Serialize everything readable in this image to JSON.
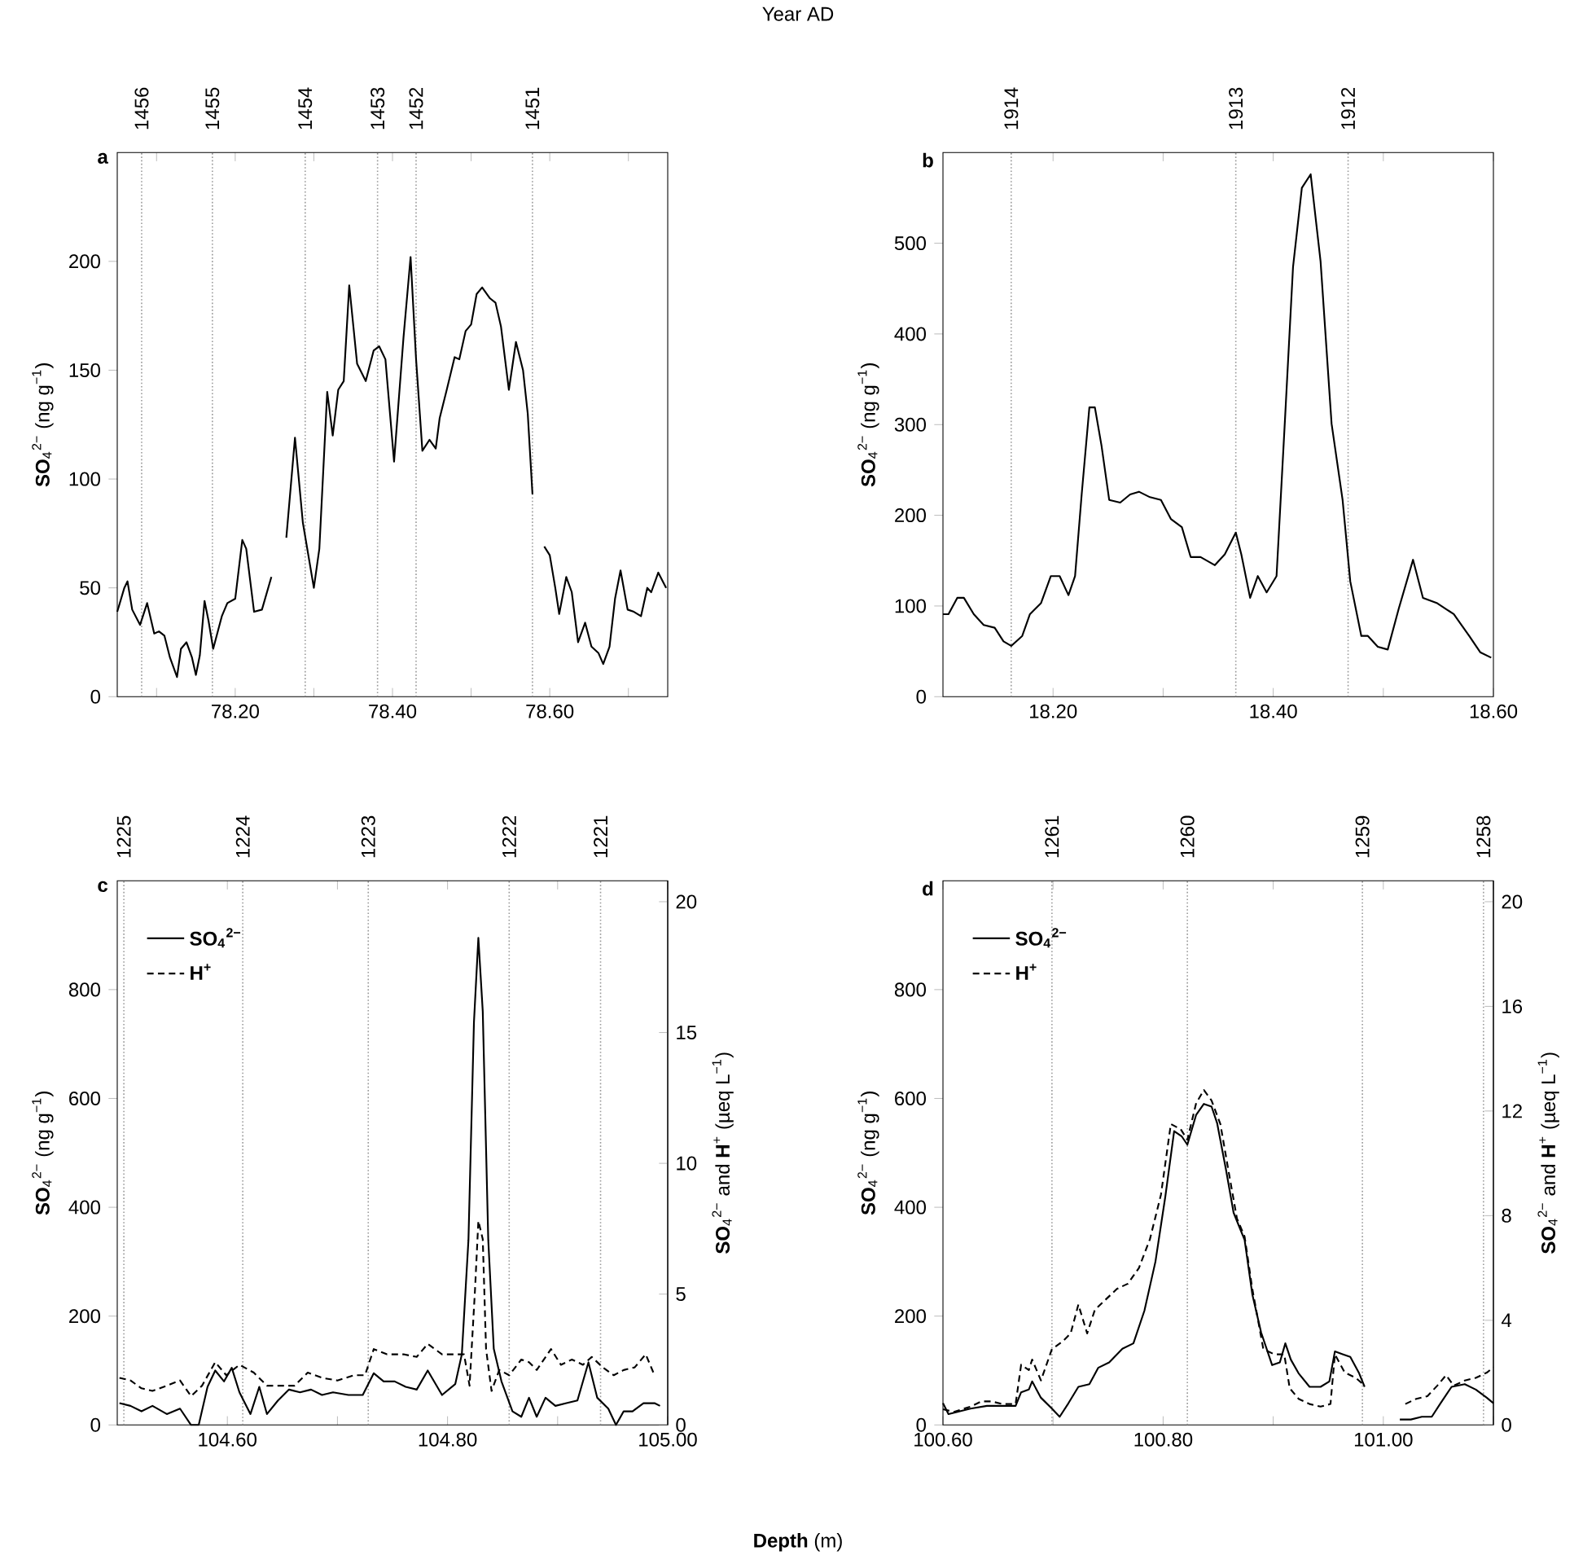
{
  "chart_data": [
    {
      "type": "line",
      "title": "a",
      "ylabel": "**SO**$_{4}$$^{2−}$ (ng g$^{−1}$)",
      "annotations": [
        "1456",
        "1455",
        "1454",
        "1453",
        "1452",
        "1451",
        "Year AD"
      ],
      "xlim": [
        78.05,
        78.75
      ],
      "ylim": [
        0,
        250
      ],
      "xticks": [
        {
          "value": 78.1,
          "label": null
        },
        {
          "value": 78.2,
          "label": "78.20"
        },
        {
          "value": 78.3,
          "label": null
        },
        {
          "value": 78.4,
          "label": "78.40"
        },
        {
          "value": 78.5,
          "label": null
        },
        {
          "value": 78.6,
          "label": "78.60"
        },
        {
          "value": 78.7,
          "label": null
        }
      ],
      "yticks": [
        0,
        50,
        100,
        150,
        200
      ],
      "ref_lines": [
        {
          "axis": "x",
          "value": 78.081,
          "color": "#999999",
          "line_style": "dotted"
        },
        {
          "axis": "x",
          "value": 78.171,
          "color": "#999999",
          "line_style": "dotted"
        },
        {
          "axis": "x",
          "value": 78.289,
          "color": "#999999",
          "line_style": "dotted"
        },
        {
          "axis": "x",
          "value": 78.381,
          "color": "#999999",
          "line_style": "dotted"
        },
        {
          "axis": "x",
          "value": 78.43,
          "color": "#999999",
          "line_style": "dotted"
        },
        {
          "axis": "x",
          "value": 78.578,
          "color": "#999999",
          "line_style": "dotted"
        }
      ],
      "series": [
        {
          "color": "#000000",
          "line_style": "solid",
          "x": [
            78.05,
            78.059,
            78.063,
            78.069,
            78.079,
            78.088,
            78.097,
            78.103,
            78.11,
            78.117,
            78.126,
            78.131,
            78.138,
            78.145,
            78.15,
            78.155,
            78.161,
            78.166,
            78.172,
            78.183,
            78.19,
            78.2,
            78.209,
            78.214,
            78.224,
            78.234,
            78.246,
            78.255,
            78.265,
            78.276,
            78.286,
            78.3,
            78.307,
            78.317,
            78.324,
            78.331,
            78.338,
            78.345,
            78.355,
            78.366,
            78.376,
            78.383,
            78.391,
            78.402,
            78.414,
            78.423,
            78.43,
            78.438,
            78.447,
            78.455,
            78.46,
            78.469,
            78.479,
            78.485,
            78.493,
            78.5,
            78.507,
            78.514,
            78.524,
            78.531,
            78.538,
            78.548,
            78.557,
            78.566,
            78.572,
            78.578,
            78.585,
            78.593,
            78.6,
            78.607,
            78.612,
            78.621,
            78.628,
            78.636,
            78.645,
            78.653,
            78.662,
            78.668,
            78.676,
            78.683,
            78.69,
            78.699,
            78.707,
            78.716,
            78.724,
            78.729,
            78.738,
            78.748
          ],
          "values": [
            39,
            50,
            53,
            40,
            33,
            43,
            29,
            30,
            28,
            18,
            9,
            22,
            25,
            18,
            10,
            19,
            44,
            35,
            22,
            37,
            43,
            45,
            72,
            68,
            39,
            40,
            55,
            null,
            73,
            119,
            80,
            50,
            68,
            140,
            120,
            141,
            145,
            189,
            153,
            145,
            159,
            161,
            155,
            108,
            165,
            202,
            155,
            113,
            118,
            114,
            128,
            141,
            156,
            155,
            168,
            171,
            185,
            188,
            183,
            181,
            170,
            141,
            163,
            150,
            130,
            93,
            null,
            69,
            65,
            50,
            38,
            55,
            48,
            25,
            34,
            23,
            20,
            15,
            23,
            45,
            58,
            40,
            39,
            37,
            50,
            48,
            57,
            50
          ]
        }
      ]
    },
    {
      "type": "line",
      "title": "b",
      "ylabel": "**SO**$_{4}$$^{2−}$ (ng g$^{−1}$)",
      "xlim": [
        18.1,
        18.6
      ],
      "ylim": [
        0,
        600
      ],
      "xticks": [
        {
          "value": 18.2,
          "label": "18.20"
        },
        {
          "value": 18.3,
          "label": null
        },
        {
          "value": 18.4,
          "label": "18.40"
        },
        {
          "value": 18.5,
          "label": null
        },
        {
          "value": 18.6,
          "label": "18.60"
        }
      ],
      "yticks": [
        0,
        100,
        200,
        300,
        400,
        500
      ],
      "annotations": [
        "1914",
        "1913",
        "1912"
      ],
      "ref_lines": [
        {
          "axis": "x",
          "value": 18.162,
          "color": "#999999",
          "line_style": "dotted"
        },
        {
          "axis": "x",
          "value": 18.366,
          "color": "#999999",
          "line_style": "dotted"
        },
        {
          "axis": "x",
          "value": 18.468,
          "color": "#999999",
          "line_style": "dotted"
        }
      ],
      "series": [
        {
          "color": "#000000",
          "line_style": "solid",
          "x": [
            18.1,
            18.105,
            18.113,
            18.119,
            18.128,
            18.137,
            18.147,
            18.155,
            18.162,
            18.172,
            18.179,
            18.189,
            18.198,
            18.206,
            18.214,
            18.22,
            18.226,
            18.233,
            18.238,
            18.244,
            18.251,
            18.261,
            18.27,
            18.278,
            18.288,
            18.298,
            18.307,
            18.317,
            18.325,
            18.334,
            18.347,
            18.356,
            18.366,
            18.371,
            18.379,
            18.386,
            18.394,
            18.403,
            18.411,
            18.418,
            18.426,
            18.434,
            18.443,
            18.453,
            18.463,
            18.47,
            18.48,
            18.486,
            18.495,
            18.504,
            18.514,
            18.527,
            18.536,
            18.549,
            18.564,
            18.578,
            18.588,
            18.598
          ],
          "values": [
            91,
            91,
            109,
            109,
            91,
            79,
            76,
            61,
            56,
            67,
            91,
            103,
            133,
            133,
            112,
            133,
            223,
            319,
            319,
            277,
            217,
            214,
            223,
            226,
            220,
            217,
            196,
            187,
            154,
            154,
            145,
            157,
            181,
            157,
            109,
            133,
            115,
            133,
            313,
            474,
            561,
            576,
            480,
            301,
            217,
            127,
            67,
            67,
            55,
            52,
            97,
            151,
            109,
            103,
            91,
            67,
            49,
            43
          ]
        }
      ]
    },
    {
      "type": "line",
      "title": "c",
      "ylabel": "**SO**$_{4}$$^{2−}$ (ng g$^{−1}$)",
      "y2label": "**SO**$_{4}$$^{2−}$ and **H**$^{+}$ (µeq L$^{−1}$)",
      "annotations": [
        "1225",
        "1224",
        "1223",
        "1222",
        "1221",
        "**Depth** (m)"
      ],
      "legend": "top left",
      "xlim": [
        104.5,
        105.0
      ],
      "ylim": [
        0,
        1000
      ],
      "y2lim": [
        0,
        20.8
      ],
      "xticks": [
        {
          "value": 104.6,
          "label": "104.60"
        },
        {
          "value": 104.7,
          "label": null
        },
        {
          "value": 104.8,
          "label": "104.80"
        },
        {
          "value": 104.9,
          "label": null
        },
        {
          "value": 105.0,
          "label": "105.00"
        }
      ],
      "yticks": [
        0,
        200,
        400,
        600,
        800
      ],
      "y2ticks": [
        0,
        5,
        10,
        15,
        20
      ],
      "ref_lines": [
        {
          "axis": "x",
          "value": 104.506,
          "color": "#999999",
          "line_style": "dotted"
        },
        {
          "axis": "x",
          "value": 104.614,
          "color": "#999999",
          "line_style": "dotted"
        },
        {
          "axis": "x",
          "value": 104.728,
          "color": "#999999",
          "line_style": "dotted"
        },
        {
          "axis": "x",
          "value": 104.856,
          "color": "#999999",
          "line_style": "dotted"
        },
        {
          "axis": "x",
          "value": 104.939,
          "color": "#999999",
          "line_style": "dotted"
        }
      ],
      "series": [
        {
          "name": "SO$_{4}$$^{2−}$",
          "color": "#000000",
          "line_style": "solid",
          "x": [
            104.502,
            104.512,
            104.522,
            104.532,
            104.545,
            104.557,
            104.567,
            104.574,
            104.582,
            104.589,
            104.597,
            104.604,
            104.611,
            104.621,
            104.629,
            104.636,
            104.646,
            104.656,
            104.666,
            104.676,
            104.686,
            104.696,
            104.71,
            104.723,
            104.733,
            104.742,
            104.752,
            104.762,
            104.772,
            104.782,
            104.795,
            104.807,
            104.813,
            104.819,
            104.824,
            104.828,
            104.832,
            104.837,
            104.842,
            104.849,
            104.859,
            104.867,
            104.874,
            104.881,
            104.889,
            104.898,
            104.908,
            104.918,
            104.928,
            104.936,
            104.946,
            104.953,
            104.96,
            104.968,
            104.978,
            104.988,
            104.993
          ],
          "values": [
            40,
            35,
            25,
            35,
            20,
            30,
            0,
            0,
            70,
            100,
            80,
            105,
            60,
            20,
            70,
            20,
            45,
            65,
            60,
            65,
            55,
            60,
            55,
            55,
            95,
            80,
            80,
            70,
            65,
            100,
            55,
            75,
            130,
            340,
            740,
            895,
            760,
            340,
            140,
            80,
            25,
            15,
            50,
            15,
            50,
            35,
            40,
            45,
            115,
            50,
            30,
            0,
            25,
            25,
            40,
            40,
            35
          ]
        },
        {
          "name": "H$^{+}$",
          "axis": "y2",
          "color": "#000000",
          "line_style": "dashed",
          "x": [
            104.502,
            104.512,
            104.522,
            104.532,
            104.545,
            104.557,
            104.567,
            104.577,
            104.589,
            104.599,
            104.611,
            104.624,
            104.636,
            104.651,
            104.661,
            104.673,
            104.686,
            104.7,
            104.715,
            104.725,
            104.733,
            104.745,
            104.76,
            104.772,
            104.782,
            104.795,
            104.807,
            104.815,
            104.82,
            104.825,
            104.828,
            104.832,
            104.835,
            104.84,
            104.847,
            104.856,
            104.867,
            104.874,
            104.881,
            104.894,
            104.903,
            104.913,
            104.923,
            104.931,
            104.941,
            104.951,
            104.96,
            104.97,
            104.98,
            104.988
          ],
          "values": [
            1.8,
            1.7,
            1.4,
            1.3,
            1.5,
            1.7,
            1.1,
            1.5,
            2.4,
            1.9,
            2.3,
            2.0,
            1.5,
            1.5,
            1.5,
            2.0,
            1.8,
            1.7,
            1.9,
            1.9,
            2.9,
            2.7,
            2.7,
            2.6,
            3.1,
            2.7,
            2.7,
            2.7,
            1.5,
            5.2,
            7.8,
            7.1,
            2.9,
            1.3,
            2.1,
            1.9,
            2.5,
            2.4,
            2.1,
            2.9,
            2.3,
            2.5,
            2.3,
            2.6,
            2.2,
            1.9,
            2.1,
            2.2,
            2.7,
            1.9
          ]
        }
      ]
    },
    {
      "type": "line",
      "title": "d",
      "ylabel": "**SO**$_{4}$$^{2−}$ (ng g$^{−1}$)",
      "y2label": "**SO**$_{4}$$^{2−}$ and **H**$^{+}$ (µeq L$^{−1}$)",
      "legend": "top left",
      "xlim": [
        100.6,
        101.1
      ],
      "ylim": [
        0,
        1000
      ],
      "y2lim": [
        0,
        20.8
      ],
      "xticks": [
        {
          "value": 100.6,
          "label": "100.60"
        },
        {
          "value": 100.7,
          "label": null
        },
        {
          "value": 100.8,
          "label": "100.80"
        },
        {
          "value": 100.9,
          "label": null
        },
        {
          "value": 101.0,
          "label": "101.00"
        },
        {
          "value": 101.1,
          "label": null
        }
      ],
      "yticks": [
        0,
        200,
        400,
        600,
        800
      ],
      "y2ticks": [
        0,
        4,
        8,
        12,
        16,
        20
      ],
      "annotations": [
        "1261",
        "1260",
        "1259",
        "1258"
      ],
      "ref_lines": [
        {
          "axis": "x",
          "value": 100.699,
          "color": "#999999",
          "line_style": "dotted"
        },
        {
          "axis": "x",
          "value": 100.822,
          "color": "#999999",
          "line_style": "dotted"
        },
        {
          "axis": "x",
          "value": 100.981,
          "color": "#999999",
          "line_style": "dotted"
        },
        {
          "axis": "x",
          "value": 101.091,
          "color": "#999999",
          "line_style": "dotted"
        }
      ],
      "series": [
        {
          "name": "SO$_{4}$$^{2−}$",
          "color": "#000000",
          "line_style": "solid",
          "x": [
            100.6,
            100.605,
            100.615,
            100.625,
            100.64,
            100.652,
            100.666,
            100.671,
            100.678,
            100.681,
            100.689,
            100.699,
            100.706,
            100.714,
            100.723,
            100.733,
            100.741,
            100.751,
            100.763,
            100.773,
            100.783,
            100.793,
            100.802,
            100.81,
            100.817,
            100.822,
            100.83,
            100.837,
            100.844,
            100.849,
            100.857,
            100.864,
            100.874,
            100.881,
            100.889,
            100.899,
            100.906,
            100.911,
            100.916,
            100.923,
            100.933,
            100.943,
            100.951,
            100.956,
            100.963,
            100.97,
            100.978,
            100.983,
            101.0,
            101.015,
            101.025,
            101.035,
            101.044,
            101.052,
            101.062,
            101.074,
            101.084,
            101.094,
            101.1
          ],
          "values": [
            40,
            20,
            25,
            30,
            35,
            35,
            35,
            60,
            65,
            80,
            50,
            30,
            15,
            40,
            70,
            75,
            105,
            115,
            140,
            150,
            210,
            300,
            420,
            540,
            530,
            515,
            570,
            590,
            585,
            555,
            470,
            390,
            340,
            240,
            170,
            110,
            115,
            150,
            120,
            95,
            70,
            70,
            80,
            135,
            130,
            125,
            95,
            70,
            null,
            10,
            10,
            15,
            15,
            40,
            70,
            75,
            65,
            50,
            40
          ]
        },
        {
          "name": "H$^{+}$",
          "axis": "y2",
          "color": "#000000",
          "line_style": "dashed",
          "x": [
            100.6,
            100.61,
            100.625,
            100.635,
            100.644,
            100.654,
            100.666,
            100.671,
            100.678,
            100.681,
            100.689,
            100.699,
            100.709,
            100.716,
            100.723,
            100.731,
            100.738,
            100.748,
            100.758,
            100.768,
            100.778,
            100.788,
            100.798,
            100.807,
            100.816,
            100.822,
            100.83,
            100.837,
            100.844,
            100.852,
            100.859,
            100.867,
            100.874,
            100.881,
            100.891,
            100.901,
            100.91,
            100.915,
            100.923,
            100.933,
            100.943,
            100.952,
            100.956,
            100.965,
            100.975,
            100.983,
            101.0,
            101.02,
            101.03,
            101.04,
            101.049,
            101.057,
            101.064,
            101.074,
            101.084,
            101.094,
            101.1
          ],
          "values": [
            0.6,
            0.5,
            0.7,
            0.9,
            0.9,
            0.8,
            0.8,
            2.3,
            2.1,
            2.5,
            1.7,
            2.9,
            3.2,
            3.5,
            4.6,
            3.5,
            4.4,
            4.8,
            5.2,
            5.4,
            6.0,
            7.1,
            8.8,
            11.5,
            11.3,
            10.9,
            12.3,
            12.8,
            12.4,
            11.5,
            9.8,
            7.9,
            7.2,
            5.2,
            2.9,
            2.7,
            2.7,
            1.4,
            1.0,
            0.8,
            0.7,
            0.8,
            2.7,
            2.0,
            1.8,
            1.5,
            null,
            0.8,
            1.0,
            1.1,
            1.5,
            1.9,
            1.5,
            1.7,
            1.8,
            2.0,
            2.2
          ]
        }
      ]
    }
  ]
}
